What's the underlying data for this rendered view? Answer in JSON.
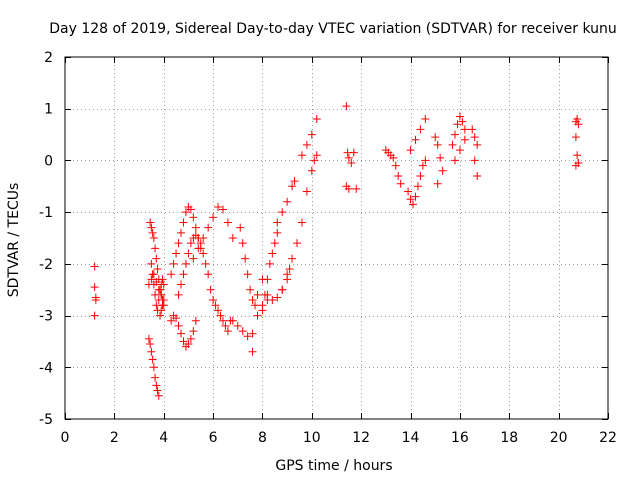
{
  "chart_data": {
    "type": "scatter",
    "title": "Day 128 of 2019, Sidereal Day-to-day VTEC variation (SDTVAR) for receiver kunu",
    "xlabel": "GPS time / hours",
    "ylabel": "SDTVAR / TECUs",
    "xlim": [
      0,
      22
    ],
    "ylim": [
      -5,
      2
    ],
    "xticks": [
      "0",
      "2",
      "4",
      "6",
      "8",
      "10",
      "12",
      "14",
      "16",
      "18",
      "20",
      "22"
    ],
    "yticks": [
      "-5",
      "-4",
      "-3",
      "-2",
      "-1",
      "0",
      "1",
      "2"
    ],
    "grid": true,
    "marker": "plus",
    "color": "#ff0000",
    "x": [
      1.2,
      1.2,
      1.25,
      1.25,
      1.2,
      3.4,
      3.45,
      3.5,
      3.55,
      3.6,
      3.65,
      3.7,
      3.75,
      3.8,
      3.85,
      3.9,
      3.95,
      4.0,
      3.45,
      3.5,
      3.55,
      3.6,
      3.65,
      3.7,
      3.75,
      3.8,
      3.85,
      3.9,
      3.95,
      4.0,
      3.4,
      3.5,
      3.6,
      3.7,
      3.8,
      3.9,
      4.0,
      3.5,
      3.55,
      3.6,
      3.65,
      3.7,
      3.75,
      3.8,
      3.85,
      3.9,
      3.95,
      4.3,
      4.4,
      4.5,
      4.6,
      4.7,
      4.8,
      4.9,
      5.0,
      5.1,
      5.2,
      5.3,
      5.4,
      5.5,
      4.3,
      4.4,
      4.5,
      4.6,
      4.7,
      4.8,
      4.9,
      5.0,
      5.1,
      5.2,
      5.3,
      4.6,
      4.7,
      4.8,
      4.9,
      5.0,
      5.1,
      5.2,
      5.3,
      5.4,
      5.5,
      5.6,
      5.7,
      5.8,
      5.9,
      6.0,
      6.1,
      6.2,
      6.3,
      6.4,
      6.5,
      6.6,
      6.7,
      5.2,
      5.4,
      5.6,
      5.8,
      6.0,
      6.2,
      6.4,
      6.6,
      6.8,
      7.1,
      7.2,
      7.3,
      7.4,
      7.5,
      7.6,
      7.7,
      7.8,
      6.8,
      7.0,
      7.2,
      7.4,
      7.6,
      7.8,
      8.0,
      8.2,
      7.6,
      8.0,
      8.1,
      8.2,
      8.3,
      8.4,
      8.5,
      8.6,
      8.0,
      8.2,
      8.4,
      8.6,
      8.8,
      9.0,
      9.1,
      8.6,
      8.8,
      9.0,
      9.2,
      9.3,
      8.8,
      9.0,
      9.2,
      9.4,
      9.6,
      9.8,
      10.0,
      10.1,
      10.2,
      9.6,
      9.8,
      10.0,
      10.2,
      11.4,
      11.45,
      11.5,
      11.6,
      11.7,
      11.4,
      11.5,
      11.8,
      13.0,
      13.1,
      13.2,
      13.3,
      13.4,
      13.5,
      13.6,
      13.9,
      14.0,
      14.1,
      14.2,
      14.3,
      14.4,
      14.5,
      14.6,
      14.0,
      14.2,
      14.4,
      14.6,
      15.0,
      15.1,
      15.2,
      15.1,
      15.3,
      15.7,
      15.8,
      15.9,
      16.0,
      16.1,
      16.2,
      15.8,
      16.0,
      16.2,
      16.5,
      16.6,
      16.7,
      16.6,
      16.7,
      20.7,
      20.75,
      20.8,
      20.7,
      20.75,
      20.8,
      20.7
    ],
    "y": [
      -2.05,
      -2.45,
      -2.7,
      -2.65,
      -3.0,
      -3.45,
      -3.55,
      -3.7,
      -3.85,
      -4.0,
      -4.2,
      -4.35,
      -4.45,
      -4.55,
      -3.0,
      -2.9,
      -2.8,
      -2.7,
      -1.2,
      -1.3,
      -1.4,
      -1.5,
      -1.7,
      -1.9,
      -2.1,
      -2.3,
      -2.5,
      -2.6,
      -2.7,
      -2.8,
      -2.4,
      -2.3,
      -2.2,
      -2.35,
      -2.5,
      -2.6,
      -2.4,
      -2.0,
      -2.2,
      -2.4,
      -2.6,
      -2.8,
      -2.9,
      -2.7,
      -2.5,
      -2.4,
      -2.3,
      -2.2,
      -2.0,
      -1.8,
      -1.6,
      -1.4,
      -1.2,
      -1.0,
      -0.9,
      -0.95,
      -1.1,
      -1.3,
      -1.5,
      -1.7,
      -3.1,
      -3.0,
      -3.05,
      -3.2,
      -3.35,
      -3.5,
      -3.6,
      -3.55,
      -3.45,
      -3.3,
      -3.1,
      -2.6,
      -2.4,
      -2.2,
      -2.0,
      -1.8,
      -1.6,
      -1.5,
      -1.45,
      -1.5,
      -1.6,
      -1.8,
      -2.0,
      -2.2,
      -2.5,
      -2.7,
      -2.8,
      -2.9,
      -3.0,
      -3.1,
      -3.2,
      -3.3,
      -3.1,
      -1.9,
      -1.7,
      -1.5,
      -1.3,
      -1.1,
      -0.9,
      -0.95,
      -1.2,
      -1.5,
      -1.3,
      -1.6,
      -1.9,
      -2.2,
      -2.5,
      -2.7,
      -2.8,
      -2.6,
      -3.1,
      -3.2,
      -3.3,
      -3.4,
      -3.35,
      -3.0,
      -2.8,
      -2.7,
      -3.7,
      -2.9,
      -2.6,
      -2.3,
      -2.0,
      -1.8,
      -1.6,
      -1.4,
      -2.3,
      -2.6,
      -2.7,
      -2.65,
      -2.5,
      -2.3,
      -2.1,
      -1.2,
      -1.0,
      -0.8,
      -0.5,
      -0.4,
      -2.5,
      -2.2,
      -1.9,
      -1.6,
      -1.2,
      -0.6,
      -0.2,
      0.0,
      0.1,
      0.1,
      0.3,
      0.5,
      0.8,
      1.05,
      0.15,
      0.05,
      -0.05,
      0.15,
      -0.5,
      -0.55,
      -0.55,
      0.2,
      0.15,
      0.1,
      0.05,
      -0.1,
      -0.3,
      -0.45,
      -0.6,
      -0.75,
      -0.85,
      -0.7,
      -0.5,
      -0.3,
      -0.1,
      0.0,
      0.2,
      0.4,
      0.6,
      0.8,
      0.45,
      0.3,
      0.05,
      -0.45,
      -0.2,
      0.3,
      0.5,
      0.7,
      0.85,
      0.75,
      0.6,
      0.0,
      0.2,
      0.4,
      0.6,
      0.45,
      0.3,
      0.0,
      -0.3,
      0.75,
      0.8,
      0.7,
      0.45,
      0.1,
      -0.05,
      -0.1
    ]
  }
}
